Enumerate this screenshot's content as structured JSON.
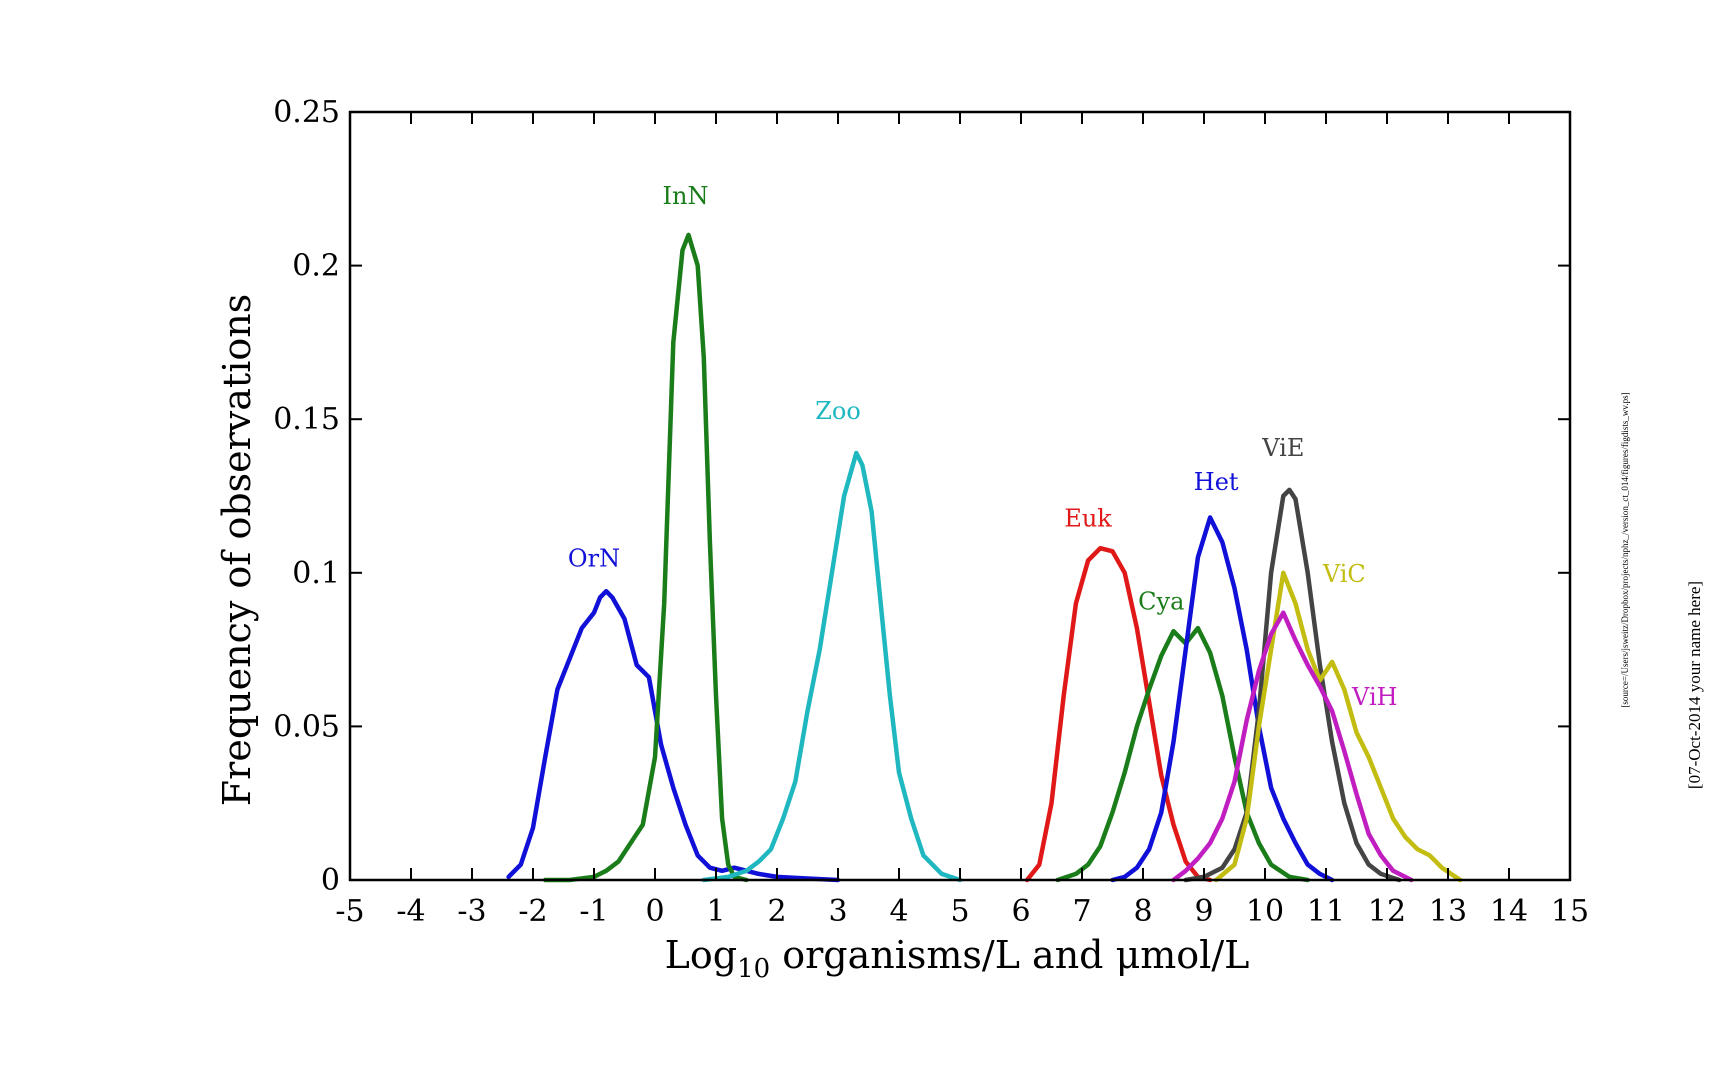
{
  "chart_data": {
    "type": "line",
    "xlabel_main": "Log",
    "xlabel_sub": "10",
    "xlabel_rest": " organisms/L and μmol/L",
    "ylabel": "Frequency of observations",
    "xlim": [
      -5,
      15
    ],
    "ylim": [
      0,
      0.25
    ],
    "x_ticks": [
      "-5",
      "-4",
      "-3",
      "-2",
      "-1",
      "0",
      "1",
      "2",
      "3",
      "4",
      "5",
      "6",
      "7",
      "8",
      "9",
      "10",
      "11",
      "12",
      "13",
      "14",
      "15"
    ],
    "y_ticks": [
      "0",
      "0.05",
      "0.1",
      "0.15",
      "0.2",
      "0.25"
    ],
    "grid": false,
    "series": [
      {
        "name": "OrN",
        "color": "#1010d8",
        "label_at": [
          -1.0,
          0.102
        ],
        "points": [
          [
            -2.4,
            0.001
          ],
          [
            -2.2,
            0.005
          ],
          [
            -2.0,
            0.017
          ],
          [
            -1.8,
            0.04
          ],
          [
            -1.6,
            0.062
          ],
          [
            -1.4,
            0.072
          ],
          [
            -1.2,
            0.082
          ],
          [
            -1.0,
            0.087
          ],
          [
            -0.9,
            0.092
          ],
          [
            -0.8,
            0.094
          ],
          [
            -0.7,
            0.092
          ],
          [
            -0.5,
            0.085
          ],
          [
            -0.3,
            0.07
          ],
          [
            -0.1,
            0.066
          ],
          [
            0.1,
            0.044
          ],
          [
            0.3,
            0.03
          ],
          [
            0.5,
            0.018
          ],
          [
            0.7,
            0.008
          ],
          [
            0.9,
            0.004
          ],
          [
            1.1,
            0.003
          ],
          [
            1.3,
            0.004
          ],
          [
            1.5,
            0.003
          ],
          [
            1.7,
            0.002
          ],
          [
            2.0,
            0.001
          ],
          [
            2.5,
            0.0005
          ],
          [
            3.0,
            0.0
          ]
        ]
      },
      {
        "name": "InN",
        "color": "#1a7d1a",
        "label_at": [
          0.5,
          0.22
        ],
        "points": [
          [
            -1.8,
            0.0
          ],
          [
            -1.4,
            0.0
          ],
          [
            -1.0,
            0.001
          ],
          [
            -0.8,
            0.003
          ],
          [
            -0.6,
            0.006
          ],
          [
            -0.4,
            0.012
          ],
          [
            -0.2,
            0.018
          ],
          [
            0.0,
            0.04
          ],
          [
            0.15,
            0.09
          ],
          [
            0.3,
            0.175
          ],
          [
            0.45,
            0.205
          ],
          [
            0.55,
            0.21
          ],
          [
            0.7,
            0.2
          ],
          [
            0.8,
            0.17
          ],
          [
            0.9,
            0.11
          ],
          [
            1.0,
            0.06
          ],
          [
            1.1,
            0.02
          ],
          [
            1.2,
            0.005
          ],
          [
            1.3,
            0.001
          ],
          [
            1.5,
            0.0
          ]
        ]
      },
      {
        "name": "Zoo",
        "color": "#20b8c0",
        "label_at": [
          3.0,
          0.15
        ],
        "points": [
          [
            0.8,
            0.0
          ],
          [
            1.2,
            0.001
          ],
          [
            1.5,
            0.003
          ],
          [
            1.7,
            0.006
          ],
          [
            1.9,
            0.01
          ],
          [
            2.1,
            0.02
          ],
          [
            2.3,
            0.032
          ],
          [
            2.5,
            0.055
          ],
          [
            2.7,
            0.075
          ],
          [
            2.9,
            0.1
          ],
          [
            3.1,
            0.125
          ],
          [
            3.3,
            0.139
          ],
          [
            3.4,
            0.135
          ],
          [
            3.55,
            0.12
          ],
          [
            3.7,
            0.09
          ],
          [
            3.85,
            0.06
          ],
          [
            4.0,
            0.035
          ],
          [
            4.2,
            0.02
          ],
          [
            4.4,
            0.008
          ],
          [
            4.7,
            0.002
          ],
          [
            5.0,
            0.0
          ]
        ]
      },
      {
        "name": "Euk",
        "color": "#e01818",
        "label_at": [
          7.1,
          0.115
        ],
        "points": [
          [
            6.1,
            0.0
          ],
          [
            6.3,
            0.005
          ],
          [
            6.5,
            0.025
          ],
          [
            6.7,
            0.06
          ],
          [
            6.9,
            0.09
          ],
          [
            7.1,
            0.104
          ],
          [
            7.3,
            0.108
          ],
          [
            7.5,
            0.107
          ],
          [
            7.7,
            0.1
          ],
          [
            7.9,
            0.082
          ],
          [
            8.1,
            0.058
          ],
          [
            8.3,
            0.034
          ],
          [
            8.5,
            0.018
          ],
          [
            8.7,
            0.006
          ],
          [
            8.9,
            0.001
          ],
          [
            9.1,
            0.0
          ]
        ]
      },
      {
        "name": "Cya",
        "color": "#1a7d1a",
        "label_at": [
          8.3,
          0.088
        ],
        "points": [
          [
            6.6,
            0.0
          ],
          [
            6.9,
            0.002
          ],
          [
            7.1,
            0.005
          ],
          [
            7.3,
            0.011
          ],
          [
            7.5,
            0.022
          ],
          [
            7.7,
            0.035
          ],
          [
            7.9,
            0.05
          ],
          [
            8.1,
            0.062
          ],
          [
            8.3,
            0.073
          ],
          [
            8.5,
            0.081
          ],
          [
            8.7,
            0.077
          ],
          [
            8.9,
            0.082
          ],
          [
            9.1,
            0.074
          ],
          [
            9.3,
            0.06
          ],
          [
            9.5,
            0.04
          ],
          [
            9.7,
            0.022
          ],
          [
            9.9,
            0.012
          ],
          [
            10.1,
            0.005
          ],
          [
            10.4,
            0.001
          ],
          [
            10.7,
            0.0
          ]
        ]
      },
      {
        "name": "Het",
        "color": "#1010d8",
        "label_at": [
          9.2,
          0.127
        ],
        "points": [
          [
            7.5,
            0.0
          ],
          [
            7.7,
            0.001
          ],
          [
            7.9,
            0.004
          ],
          [
            8.1,
            0.01
          ],
          [
            8.3,
            0.022
          ],
          [
            8.5,
            0.045
          ],
          [
            8.7,
            0.075
          ],
          [
            8.9,
            0.105
          ],
          [
            9.1,
            0.118
          ],
          [
            9.3,
            0.11
          ],
          [
            9.5,
            0.095
          ],
          [
            9.7,
            0.075
          ],
          [
            9.9,
            0.05
          ],
          [
            10.1,
            0.03
          ],
          [
            10.3,
            0.02
          ],
          [
            10.5,
            0.012
          ],
          [
            10.7,
            0.005
          ],
          [
            10.9,
            0.002
          ],
          [
            11.1,
            0.0
          ]
        ]
      },
      {
        "name": "ViE",
        "color": "#444444",
        "label_at": [
          10.3,
          0.138
        ],
        "points": [
          [
            8.7,
            0.0
          ],
          [
            9.0,
            0.001
          ],
          [
            9.3,
            0.004
          ],
          [
            9.5,
            0.01
          ],
          [
            9.7,
            0.022
          ],
          [
            9.9,
            0.055
          ],
          [
            10.1,
            0.1
          ],
          [
            10.3,
            0.125
          ],
          [
            10.4,
            0.127
          ],
          [
            10.5,
            0.124
          ],
          [
            10.7,
            0.1
          ],
          [
            10.9,
            0.07
          ],
          [
            11.1,
            0.045
          ],
          [
            11.3,
            0.025
          ],
          [
            11.5,
            0.012
          ],
          [
            11.7,
            0.005
          ],
          [
            11.9,
            0.002
          ],
          [
            12.2,
            0.0
          ]
        ]
      },
      {
        "name": "ViC",
        "color": "#c2bd10",
        "label_at": [
          11.3,
          0.097
        ],
        "points": [
          [
            9.2,
            0.0
          ],
          [
            9.5,
            0.005
          ],
          [
            9.7,
            0.02
          ],
          [
            9.9,
            0.05
          ],
          [
            10.1,
            0.075
          ],
          [
            10.3,
            0.1
          ],
          [
            10.5,
            0.09
          ],
          [
            10.7,
            0.075
          ],
          [
            10.9,
            0.065
          ],
          [
            11.1,
            0.071
          ],
          [
            11.3,
            0.062
          ],
          [
            11.5,
            0.048
          ],
          [
            11.7,
            0.04
          ],
          [
            11.9,
            0.03
          ],
          [
            12.1,
            0.02
          ],
          [
            12.3,
            0.014
          ],
          [
            12.5,
            0.01
          ],
          [
            12.7,
            0.008
          ],
          [
            12.9,
            0.004
          ],
          [
            13.2,
            0.0
          ]
        ]
      },
      {
        "name": "ViH",
        "color": "#c01ec0",
        "label_at": [
          11.8,
          0.057
        ],
        "points": [
          [
            8.5,
            0.0
          ],
          [
            8.7,
            0.003
          ],
          [
            8.9,
            0.007
          ],
          [
            9.1,
            0.012
          ],
          [
            9.3,
            0.02
          ],
          [
            9.5,
            0.032
          ],
          [
            9.7,
            0.052
          ],
          [
            9.9,
            0.068
          ],
          [
            10.1,
            0.08
          ],
          [
            10.3,
            0.087
          ],
          [
            10.5,
            0.078
          ],
          [
            10.7,
            0.07
          ],
          [
            10.9,
            0.063
          ],
          [
            11.1,
            0.055
          ],
          [
            11.3,
            0.042
          ],
          [
            11.5,
            0.028
          ],
          [
            11.7,
            0.015
          ],
          [
            11.9,
            0.008
          ],
          [
            12.1,
            0.003
          ],
          [
            12.4,
            0.0
          ]
        ]
      }
    ]
  },
  "side_note": "[source=/Users/jsweitz/Dropbox/projects/nphz_/version_ct_014/figures/figdists_wv.ps]",
  "side_date": "[07-Oct-2014 your name here]"
}
